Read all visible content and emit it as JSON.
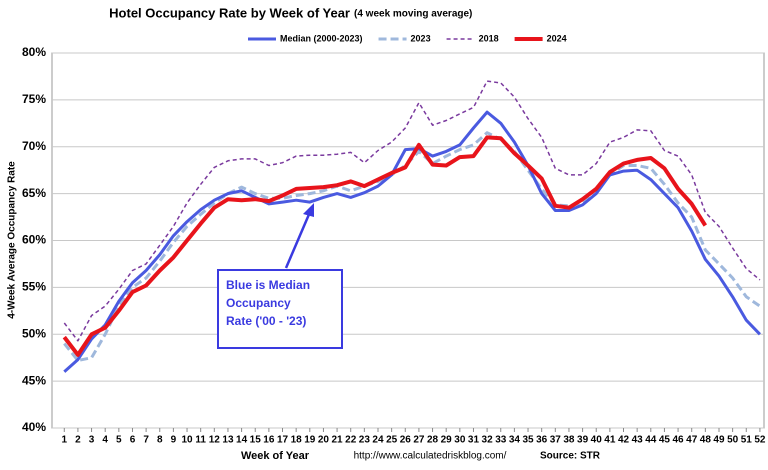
{
  "chart_data": {
    "type": "line",
    "title": "Hotel Occupancy Rate by  Week of Year",
    "subtitle": "(4 week moving average)",
    "x_label": "Week of Year",
    "y_label": "4-Week Average Occupancy Rate",
    "annotation": [
      "Blue is Median",
      "Occupancy",
      "Rate ('00 - '23)"
    ],
    "footer_url": "http://www.calculatedriskblog.com/",
    "footer_source": "Source: STR",
    "x": [
      1,
      2,
      3,
      4,
      5,
      6,
      7,
      8,
      9,
      10,
      11,
      12,
      13,
      14,
      15,
      16,
      17,
      18,
      19,
      20,
      21,
      22,
      23,
      24,
      25,
      26,
      27,
      28,
      29,
      30,
      31,
      32,
      33,
      34,
      35,
      36,
      37,
      38,
      39,
      40,
      41,
      42,
      43,
      44,
      45,
      46,
      47,
      48,
      49,
      50,
      51,
      52
    ],
    "xlim": [
      0.1,
      52.3
    ],
    "xticks": [
      1,
      2,
      3,
      4,
      5,
      6,
      7,
      8,
      9,
      10,
      11,
      12,
      13,
      14,
      15,
      16,
      17,
      18,
      19,
      20,
      21,
      22,
      23,
      24,
      25,
      26,
      27,
      28,
      29,
      30,
      31,
      32,
      33,
      34,
      35,
      36,
      37,
      38,
      39,
      40,
      41,
      42,
      43,
      44,
      45,
      46,
      47,
      48,
      49,
      50,
      51,
      52
    ],
    "ylim": [
      40,
      80
    ],
    "yticks": [
      {
        "value": 40,
        "label": "40%"
      },
      {
        "value": 45,
        "label": "45%"
      },
      {
        "value": 50,
        "label": "50%"
      },
      {
        "value": 55,
        "label": "55%"
      },
      {
        "value": 60,
        "label": "60%"
      },
      {
        "value": 65,
        "label": "65%"
      },
      {
        "value": 70,
        "label": "70%"
      },
      {
        "value": 75,
        "label": "75%"
      },
      {
        "value": 80,
        "label": "80%"
      }
    ],
    "grid": true,
    "legend_position": "top",
    "series": [
      {
        "name": "Median (2000-2023)",
        "color": "#4a5ae0",
        "line_style": "solid",
        "line_width": 3,
        "values": [
          46.0,
          47.3,
          49.5,
          51.0,
          53.5,
          55.5,
          56.8,
          58.5,
          60.5,
          62.0,
          63.3,
          64.3,
          65.0,
          65.3,
          64.6,
          63.9,
          64.1,
          64.3,
          64.1,
          64.6,
          65.0,
          64.6,
          65.1,
          65.8,
          67.0,
          69.7,
          69.8,
          69.0,
          69.5,
          70.2,
          72.0,
          73.7,
          72.5,
          70.5,
          68.0,
          65.0,
          63.2,
          63.2,
          63.8,
          65.0,
          67.0,
          67.4,
          67.5,
          66.5,
          65.0,
          63.5,
          61.0,
          58.0,
          56.2,
          54.0,
          51.5,
          50.0
        ]
      },
      {
        "name": "2023",
        "color": "#9fb8dc",
        "line_style": "dashed",
        "line_width": 3,
        "values": [
          49.0,
          47.2,
          47.5,
          50.0,
          53.0,
          55.0,
          56.0,
          57.8,
          59.8,
          61.5,
          62.8,
          64.0,
          65.0,
          65.7,
          65.0,
          64.5,
          64.5,
          64.8,
          65.0,
          65.3,
          65.8,
          65.3,
          65.8,
          66.3,
          67.0,
          68.0,
          69.5,
          68.2,
          69.0,
          69.7,
          70.2,
          71.5,
          70.8,
          69.5,
          67.5,
          65.5,
          63.8,
          63.7,
          64.0,
          65.5,
          67.0,
          68.0,
          68.0,
          67.7,
          66.0,
          64.0,
          62.5,
          59.0,
          57.5,
          56.0,
          54.0,
          53.0
        ]
      },
      {
        "name": "2018",
        "color": "#7a3a9e",
        "line_style": "dotted",
        "line_width": 1.5,
        "values": [
          51.2,
          49.3,
          52.0,
          53.0,
          54.8,
          56.8,
          57.5,
          59.5,
          61.5,
          64.0,
          66.0,
          67.8,
          68.5,
          68.7,
          68.7,
          68.0,
          68.3,
          69.0,
          69.1,
          69.1,
          69.2,
          69.4,
          68.3,
          69.6,
          70.5,
          72.0,
          74.7,
          72.3,
          72.8,
          73.5,
          74.2,
          77.0,
          76.8,
          75.3,
          73.0,
          71.0,
          67.7,
          67.0,
          67.0,
          68.2,
          70.5,
          71.0,
          71.8,
          71.7,
          69.6,
          69.0,
          67.0,
          63.0,
          61.5,
          59.2,
          57.0,
          55.8
        ]
      },
      {
        "name": "2024",
        "color": "#e8141b",
        "line_style": "solid",
        "line_width": 4,
        "values": [
          49.7,
          47.8,
          50.0,
          50.7,
          52.5,
          54.5,
          55.2,
          56.8,
          58.2,
          60.0,
          61.8,
          63.5,
          64.4,
          64.3,
          64.4,
          64.2,
          64.8,
          65.5,
          65.6,
          65.7,
          65.9,
          66.3,
          65.8,
          66.5,
          67.2,
          67.8,
          70.2,
          68.1,
          68.0,
          68.9,
          69.0,
          71.0,
          70.9,
          69.3,
          68.0,
          66.6,
          63.7,
          63.5,
          64.4,
          65.5,
          67.3,
          68.2,
          68.6,
          68.8,
          67.7,
          65.5,
          63.9,
          61.6,
          null,
          null,
          null,
          null
        ]
      }
    ]
  }
}
